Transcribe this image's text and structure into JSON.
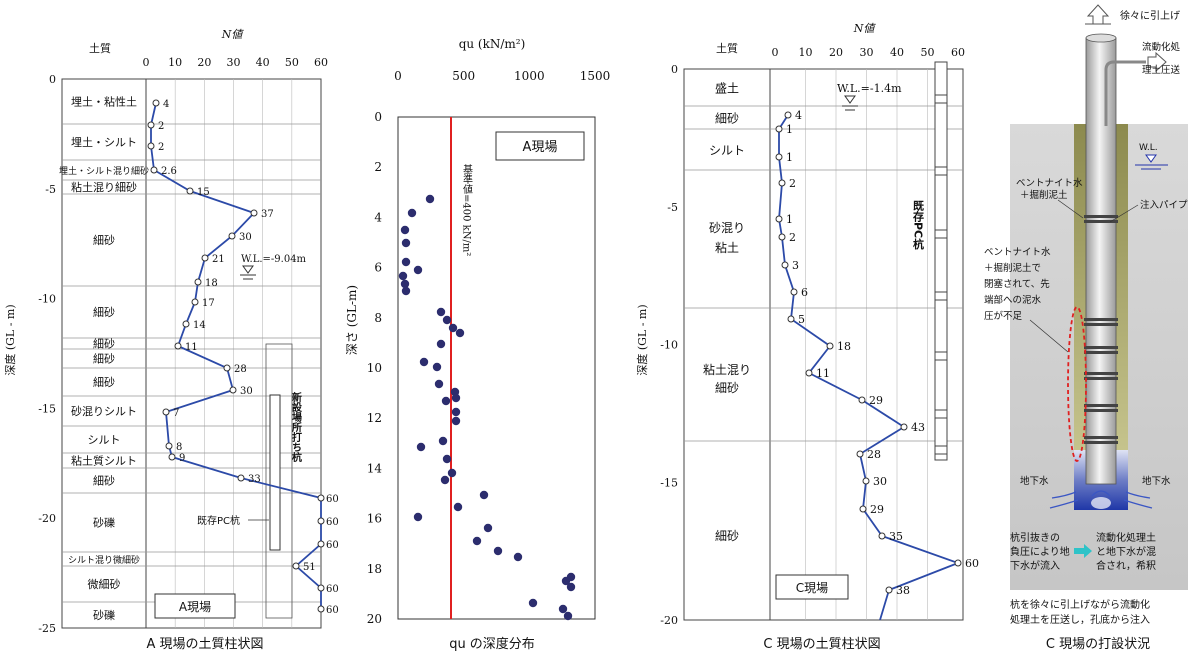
{
  "panelA": {
    "caption": "A 現場の土質柱状図",
    "col_soil": "土質",
    "col_n": "N値",
    "depth_axis": "深度 (GL - m)",
    "n_ticks": [
      "0",
      "10",
      "20",
      "30",
      "40",
      "50",
      "60"
    ],
    "depth_ticks": [
      "0",
      "-5",
      "-10",
      "-15",
      "-20",
      "-25"
    ],
    "layers": [
      "埋土・粘性土",
      "埋土・シルト",
      "埋土・シルト混り細砂",
      "粘土混り細砂",
      "細砂",
      "細砂",
      "細砂",
      "細砂",
      "細砂",
      "砂混りシルト",
      "シルト",
      "粘土質シルト",
      "細砂",
      "砂礫",
      "シルト混り微細砂",
      "微細砂",
      "砂礫"
    ],
    "water_level": "W.L.=-9.04m",
    "pile_existing": "既存PC杭",
    "pile_new": "新設場所打ち杭",
    "site": "A現場",
    "n_points": [
      {
        "depth": -1.0,
        "n": 4,
        "label": "4"
      },
      {
        "depth": -2.0,
        "n": 2,
        "label": "2"
      },
      {
        "depth": -3.0,
        "n": 2,
        "label": "2"
      },
      {
        "depth": -4.0,
        "n": 2.6,
        "label": "2.6"
      },
      {
        "depth": -5.0,
        "n": 15,
        "label": "15"
      },
      {
        "depth": -6.0,
        "n": 37,
        "label": "37"
      },
      {
        "depth": -7.0,
        "n": 30,
        "label": "30"
      },
      {
        "depth": -8.0,
        "n": 21,
        "label": "21"
      },
      {
        "depth": -9.0,
        "n": 18,
        "label": "18"
      },
      {
        "depth": -10.0,
        "n": 17,
        "label": "17"
      },
      {
        "depth": -11.0,
        "n": 14,
        "label": "14"
      },
      {
        "depth": -12.0,
        "n": 11,
        "label": "11"
      },
      {
        "depth": -13.0,
        "n": 28,
        "label": "28"
      },
      {
        "depth": -14.0,
        "n": 30,
        "label": "30"
      },
      {
        "depth": -15.0,
        "n": 7,
        "label": "7"
      },
      {
        "depth": -16.0,
        "n": 8,
        "label": "8"
      },
      {
        "depth": -17.0,
        "n": 9,
        "label": "9"
      },
      {
        "depth": -18.0,
        "n": 33,
        "label": "33"
      },
      {
        "depth": -19.0,
        "n": 60,
        "label": "60"
      },
      {
        "depth": -20.0,
        "n": 60,
        "label": "60"
      },
      {
        "depth": -21.0,
        "n": 60,
        "label": "60"
      },
      {
        "depth": -22.0,
        "n": 51,
        "label": "51"
      },
      {
        "depth": -23.0,
        "n": 60,
        "label": "60"
      },
      {
        "depth": -24.0,
        "n": 60,
        "label": "60"
      }
    ]
  },
  "panelB": {
    "caption": "qu の深度分布",
    "x_label": "qu (kN/m²)",
    "y_label": "深さ (GL-m)",
    "x_ticks": [
      "0",
      "500",
      "1000",
      "1500"
    ],
    "y_ticks": [
      "0",
      "2",
      "4",
      "6",
      "8",
      "10",
      "12",
      "14",
      "16",
      "18",
      "20"
    ],
    "site": "A現場",
    "ref_label": "基準値=400 kN/m²",
    "ref_color": "#e02020"
  },
  "panelC": {
    "caption": "C 現場の土質柱状図",
    "col_soil": "土質",
    "col_n": "N値",
    "depth_axis": "深度 (GL - m)",
    "n_ticks": [
      "0",
      "10",
      "20",
      "30",
      "40",
      "50",
      "60"
    ],
    "depth_ticks": [
      "0",
      "-5",
      "-10",
      "-15",
      "-20"
    ],
    "layers": [
      "盛土",
      "細砂",
      "シルト",
      "砂混り粘土",
      "粘土混り細砂",
      "細砂"
    ],
    "water_level": "W.L.=-1.4m",
    "pile_existing": "既存PC杭",
    "site": "C現場",
    "n_points": [
      {
        "depth": -1.7,
        "n": 4,
        "label": "4"
      },
      {
        "depth": -2.2,
        "n": 1,
        "label": "1"
      },
      {
        "depth": -3.2,
        "n": 1,
        "label": "1"
      },
      {
        "depth": -4.2,
        "n": 2,
        "label": "2"
      },
      {
        "depth": -5.5,
        "n": 1,
        "label": "1"
      },
      {
        "depth": -6.2,
        "n": 2,
        "label": "2"
      },
      {
        "depth": -7.2,
        "n": 3,
        "label": "3"
      },
      {
        "depth": -8.2,
        "n": 6,
        "label": "6"
      },
      {
        "depth": -9.2,
        "n": 5,
        "label": "5"
      },
      {
        "depth": -10.2,
        "n": 18,
        "label": "18"
      },
      {
        "depth": -11.2,
        "n": 11,
        "label": "11"
      },
      {
        "depth": -12.2,
        "n": 29,
        "label": "29"
      },
      {
        "depth": -13.2,
        "n": 43,
        "label": "43"
      },
      {
        "depth": -14.2,
        "n": 28,
        "label": "28"
      },
      {
        "depth": -15.2,
        "n": 30,
        "label": "30"
      },
      {
        "depth": -16.2,
        "n": 29,
        "label": "29"
      },
      {
        "depth": -17.2,
        "n": 35,
        "label": "35"
      },
      {
        "depth": -18.2,
        "n": 60,
        "label": "60"
      },
      {
        "depth": -19.2,
        "n": 38,
        "label": "38"
      }
    ]
  },
  "panelD": {
    "caption": "C 現場の打設状況",
    "lift": "徐々に引上げ",
    "inject_1": "流動化処",
    "inject_2": "理土圧送",
    "wl": "W.L.",
    "bentonite_1": "ベントナイト水",
    "bentonite_2": "＋掘削泥土",
    "pipe": "注入パイプ",
    "block_1": "ベントナイト水",
    "block_2": "＋掘削泥土で",
    "block_3": "閉塞されて、先",
    "block_4": "端部への泥水",
    "block_5": "圧が不足",
    "gw_left": "地下水",
    "gw_right": "地下水",
    "neg_1": "杭引抜きの",
    "neg_2": "負圧により地",
    "neg_3": "下水が流入",
    "mix_1": "流動化処理土",
    "mix_2": "と地下水が混",
    "mix_3": "合され，希釈",
    "bottom_1": "杭を徐々に引上げながら流動化",
    "bottom_2": "処理土を圧送し，孔底から注入"
  }
}
